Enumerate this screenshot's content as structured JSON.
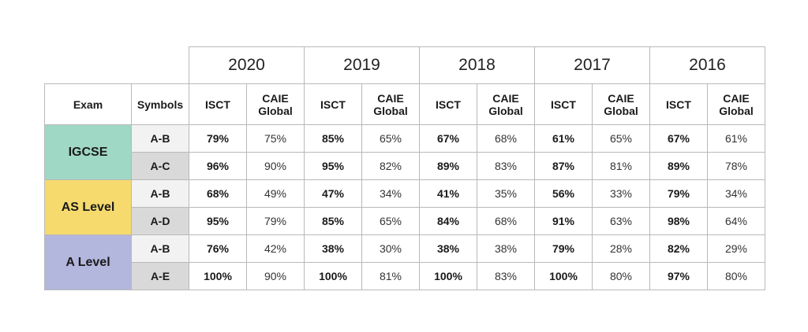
{
  "years": [
    "2020",
    "2019",
    "2018",
    "2017",
    "2016"
  ],
  "headers": {
    "exam": "Exam",
    "symbols": "Symbols",
    "isct": "ISCT",
    "caie_line1": "CAIE",
    "caie_line2": "Global"
  },
  "exams": [
    {
      "name": "IGCSE",
      "rows": [
        {
          "symbol": "A-B",
          "values": [
            [
              "79%",
              "75%"
            ],
            [
              "85%",
              "65%"
            ],
            [
              "67%",
              "68%"
            ],
            [
              "61%",
              "65%"
            ],
            [
              "67%",
              "61%"
            ]
          ]
        },
        {
          "symbol": "A-C",
          "values": [
            [
              "96%",
              "90%"
            ],
            [
              "95%",
              "82%"
            ],
            [
              "89%",
              "83%"
            ],
            [
              "87%",
              "81%"
            ],
            [
              "89%",
              "78%"
            ]
          ]
        }
      ]
    },
    {
      "name": "AS Level",
      "rows": [
        {
          "symbol": "A-B",
          "values": [
            [
              "68%",
              "49%"
            ],
            [
              "47%",
              "34%"
            ],
            [
              "41%",
              "35%"
            ],
            [
              "56%",
              "33%"
            ],
            [
              "79%",
              "34%"
            ]
          ]
        },
        {
          "symbol": "A-D",
          "values": [
            [
              "95%",
              "79%"
            ],
            [
              "85%",
              "65%"
            ],
            [
              "84%",
              "68%"
            ],
            [
              "91%",
              "63%"
            ],
            [
              "98%",
              "64%"
            ]
          ]
        }
      ]
    },
    {
      "name": "A Level",
      "rows": [
        {
          "symbol": "A-B",
          "values": [
            [
              "76%",
              "42%"
            ],
            [
              "38%",
              "30%"
            ],
            [
              "38%",
              "38%"
            ],
            [
              "79%",
              "28%"
            ],
            [
              "82%",
              "29%"
            ]
          ]
        },
        {
          "symbol": "A-E",
          "values": [
            [
              "100%",
              "90%"
            ],
            [
              "100%",
              "81%"
            ],
            [
              "100%",
              "83%"
            ],
            [
              "100%",
              "80%"
            ],
            [
              "97%",
              "80%"
            ]
          ]
        }
      ]
    }
  ]
}
